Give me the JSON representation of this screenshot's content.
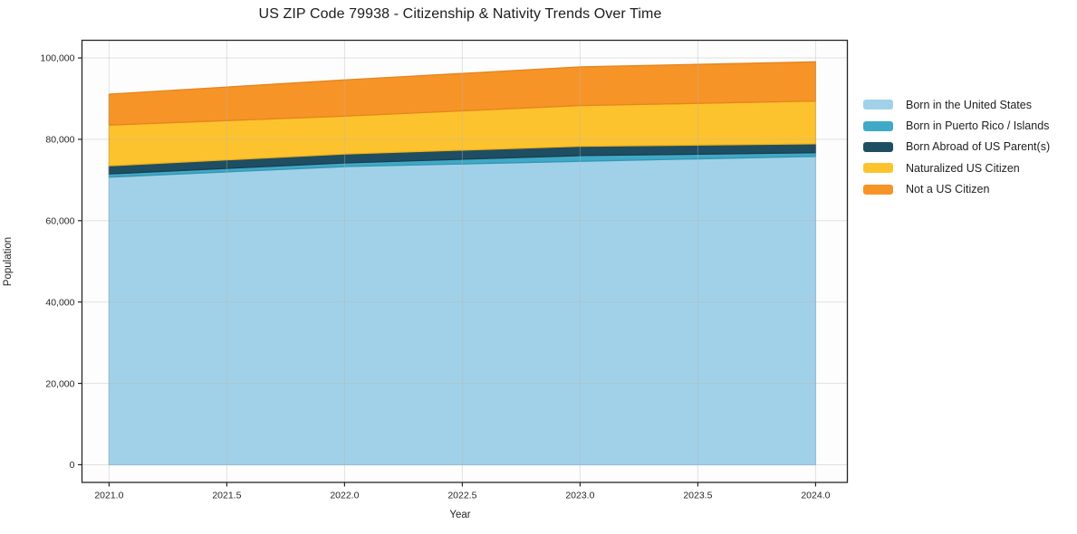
{
  "chart_data": {
    "type": "area",
    "stacked": true,
    "title": "US ZIP Code 79938 - Citizenship & Nativity Trends Over Time",
    "xlabel": "Year",
    "ylabel": "Population",
    "x": [
      2021,
      2022,
      2023,
      2024
    ],
    "series": [
      {
        "name": "Born in the United States",
        "color": "#a1d1e8",
        "edge": "#8cc2dd",
        "values": [
          70700,
          73300,
          74600,
          75800
        ]
      },
      {
        "name": "Born in Puerto Rico / Islands",
        "color": "#3fa9c6",
        "edge": "#3596b2",
        "values": [
          800,
          900,
          1400,
          900
        ]
      },
      {
        "name": "Born Abroad of US Parent(s)",
        "color": "#1f4e62",
        "edge": "#183e4f",
        "values": [
          2000,
          2200,
          2300,
          2200
        ]
      },
      {
        "name": "Naturalized US Citizen",
        "color": "#fdc32e",
        "edge": "#eeb11a",
        "values": [
          10000,
          9300,
          10000,
          10500
        ]
      },
      {
        "name": "Not a US Citizen",
        "color": "#f79428",
        "edge": "#e6851d",
        "values": [
          7600,
          8900,
          9500,
          9650
        ]
      }
    ],
    "totals": [
      91100,
      94600,
      97800,
      99050
    ],
    "x_ticks": {
      "values": [
        2021.0,
        2021.5,
        2022.0,
        2022.5,
        2023.0,
        2023.5,
        2024.0
      ],
      "labels": [
        "2021.0",
        "2021.5",
        "2022.0",
        "2022.5",
        "2023.0",
        "2023.5",
        "2024.0"
      ]
    },
    "y_ticks": {
      "values": [
        0,
        20000,
        40000,
        60000,
        80000,
        100000
      ],
      "labels": [
        "0",
        "20,000",
        "40,000",
        "60,000",
        "80,000",
        "100,000"
      ]
    },
    "xlim": [
      2020.885,
      2024.135
    ],
    "ylim": [
      -4350,
      104350
    ],
    "grid": true,
    "grid_above_areas": true,
    "legend_position": "right"
  }
}
